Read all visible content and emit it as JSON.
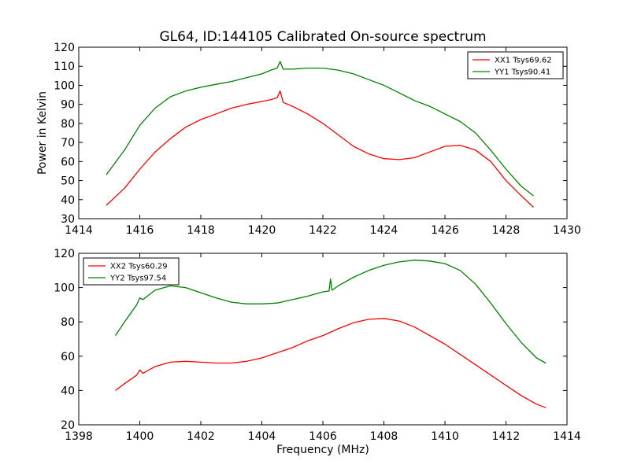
{
  "figure_title": "GL64, ID:144105 Calibrated On-source spectrum",
  "chart_data": [
    {
      "type": "line",
      "title": "GL64, ID:144105 Calibrated On-source spectrum",
      "xlabel": "",
      "ylabel": "Power in Kelvin",
      "xlim": [
        1414,
        1430
      ],
      "ylim": [
        30,
        120
      ],
      "x_ticks": [
        1414,
        1416,
        1418,
        1420,
        1422,
        1424,
        1426,
        1428,
        1430
      ],
      "y_ticks": [
        30,
        40,
        50,
        60,
        70,
        80,
        90,
        100,
        110,
        120
      ],
      "legend_position": "top-right",
      "series": [
        {
          "name": "XX1 Tsys69.62",
          "color": "#ff0000",
          "x": [
            1414.9,
            1415.5,
            1416,
            1416.5,
            1417,
            1417.5,
            1418,
            1418.5,
            1419,
            1419.5,
            1420,
            1420.3,
            1420.5,
            1420.6,
            1420.7,
            1421,
            1421.5,
            1422,
            1422.5,
            1423,
            1423.5,
            1424,
            1424.5,
            1425,
            1425.5,
            1426,
            1426.5,
            1427,
            1427.5,
            1428,
            1428.5,
            1428.9
          ],
          "values": [
            37,
            46,
            56,
            65,
            72,
            78,
            82,
            85,
            88,
            90,
            91.5,
            92.5,
            93.5,
            97,
            91,
            89,
            85,
            80,
            74,
            68,
            64,
            61.5,
            61,
            62,
            65,
            68,
            68.5,
            66,
            60,
            50,
            42,
            36
          ]
        },
        {
          "name": "YY1 Tsys90.41",
          "color": "#008000",
          "x": [
            1414.9,
            1415.5,
            1416,
            1416.5,
            1417,
            1417.5,
            1418,
            1418.5,
            1419,
            1419.5,
            1420,
            1420.3,
            1420.5,
            1420.6,
            1420.7,
            1421,
            1421.5,
            1422,
            1422.5,
            1423,
            1423.5,
            1424,
            1424.5,
            1425,
            1425.5,
            1426,
            1426.5,
            1427,
            1427.5,
            1428,
            1428.5,
            1428.9
          ],
          "values": [
            53,
            66,
            79,
            88,
            94,
            97,
            99,
            100.5,
            102,
            104,
            106,
            108,
            109,
            112.5,
            108.5,
            108.5,
            109,
            109,
            108,
            106,
            103,
            100,
            96,
            92,
            89,
            85,
            81,
            75,
            66,
            56,
            47,
            42
          ]
        }
      ]
    },
    {
      "type": "line",
      "title": "",
      "xlabel": "Frequency (MHz)",
      "ylabel": "",
      "xlim": [
        1398,
        1414
      ],
      "ylim": [
        20,
        120
      ],
      "x_ticks": [
        1398,
        1400,
        1402,
        1404,
        1406,
        1408,
        1410,
        1412,
        1414
      ],
      "y_ticks": [
        20,
        40,
        60,
        80,
        100,
        120
      ],
      "legend_position": "top-left",
      "series": [
        {
          "name": "XX2 Tsys60.29",
          "color": "#ff0000",
          "x": [
            1399.2,
            1399.5,
            1399.9,
            1400,
            1400.1,
            1400.5,
            1401,
            1401.5,
            1402,
            1402.5,
            1403,
            1403.5,
            1404,
            1404.5,
            1405,
            1405.5,
            1406,
            1406.5,
            1407,
            1407.5,
            1408,
            1408.5,
            1409,
            1409.5,
            1410,
            1410.5,
            1411,
            1411.5,
            1412,
            1412.5,
            1413,
            1413.3
          ],
          "values": [
            40,
            44,
            49,
            52,
            50,
            54,
            56.5,
            57,
            56.5,
            56,
            56,
            57,
            59,
            62,
            65,
            69,
            72,
            76,
            79.5,
            81.5,
            82,
            80.5,
            77,
            72,
            67,
            61,
            55,
            49,
            43,
            37,
            32,
            30
          ]
        },
        {
          "name": "YY2 Tsys97.54",
          "color": "#008000",
          "x": [
            1399.2,
            1399.5,
            1399.9,
            1400,
            1400.1,
            1400.5,
            1401,
            1401.5,
            1402,
            1402.5,
            1403,
            1403.5,
            1404,
            1404.5,
            1405,
            1405.5,
            1406,
            1406.2,
            1406.25,
            1406.3,
            1406.5,
            1407,
            1407.5,
            1408,
            1408.5,
            1409,
            1409.5,
            1410,
            1410.5,
            1411,
            1411.5,
            1412,
            1412.5,
            1413,
            1413.3
          ],
          "values": [
            72,
            80,
            90,
            94,
            93,
            98.5,
            101,
            100,
            97,
            94,
            91.5,
            90.5,
            90.5,
            91,
            93,
            95,
            97.5,
            98,
            105,
            98.5,
            101,
            106,
            110,
            113,
            115,
            116,
            115.5,
            114,
            110,
            102,
            91,
            79,
            68,
            59,
            56
          ]
        }
      ]
    }
  ]
}
